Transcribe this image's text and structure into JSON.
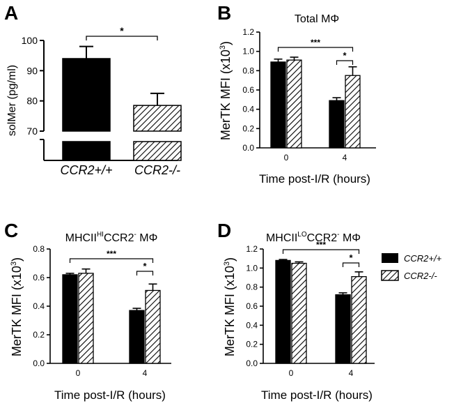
{
  "panels": {
    "A": {
      "letter": "A"
    },
    "B": {
      "letter": "B",
      "title": "Total MΦ"
    },
    "C": {
      "letter": "C",
      "title_main": "MHCII",
      "title_sup": "HI",
      "title_rest": "CCR2",
      "title_sup2": "-",
      "title_end": " MΦ"
    },
    "D": {
      "letter": "D",
      "title_main": "MHCII",
      "title_sup": "LO",
      "title_rest": "CCR2",
      "title_sup2": "-",
      "title_end": " MΦ"
    }
  },
  "legend": {
    "items": [
      "CCR2+/+",
      "CCR2-/-"
    ],
    "colors": [
      "#000000",
      "hatched"
    ]
  },
  "chart_data": [
    {
      "id": "A",
      "type": "bar",
      "ylabel": "solMer (pg/ml)",
      "categories": [
        "CCR2+/+",
        "CCR2-/-"
      ],
      "values": [
        94,
        78.5
      ],
      "errors": [
        4,
        4
      ],
      "ylim": [
        65,
        100
      ],
      "yticks": [
        "70",
        "80",
        "90",
        "100"
      ],
      "axis_break": true,
      "significance": [
        {
          "label": "*",
          "between": [
            "CCR2+/+",
            "CCR2-/-"
          ]
        }
      ]
    },
    {
      "id": "B",
      "type": "bar",
      "title": "Total MΦ",
      "xlabel": "Time post-I/R (hours)",
      "ylabel": "MerTK MFI (x10",
      "ylabel_sup": "3",
      "ylabel_end": ")",
      "categories": [
        "0",
        "4"
      ],
      "series": [
        {
          "name": "CCR2+/+",
          "values": [
            0.89,
            0.49
          ],
          "errors": [
            0.03,
            0.03
          ]
        },
        {
          "name": "CCR2-/-",
          "values": [
            0.91,
            0.75
          ],
          "errors": [
            0.03,
            0.09
          ]
        }
      ],
      "ylim": [
        0,
        1.2
      ],
      "yticks": [
        "0.0",
        "0.2",
        "0.4",
        "0.6",
        "0.8",
        "1.0",
        "1.2"
      ],
      "significance": [
        {
          "label": "***"
        },
        {
          "label": "*"
        }
      ]
    },
    {
      "id": "C",
      "type": "bar",
      "xlabel": "Time post-I/R (hours)",
      "ylabel": "MerTK MFI (x10",
      "ylabel_sup": "3",
      "ylabel_end": ")",
      "categories": [
        "0",
        "4"
      ],
      "series": [
        {
          "name": "CCR2+/+",
          "values": [
            0.62,
            0.37
          ],
          "errors": [
            0.01,
            0.015
          ]
        },
        {
          "name": "CCR2-/-",
          "values": [
            0.63,
            0.51
          ],
          "errors": [
            0.03,
            0.045
          ]
        }
      ],
      "ylim": [
        0,
        0.8
      ],
      "yticks": [
        "0.0",
        "0.2",
        "0.4",
        "0.6",
        "0.8"
      ],
      "significance": [
        {
          "label": "***"
        },
        {
          "label": "*"
        }
      ]
    },
    {
      "id": "D",
      "type": "bar",
      "xlabel": "Time post-I/R (hours)",
      "ylabel": "MerTK MFI (x10",
      "ylabel_sup": "3",
      "ylabel_end": ")",
      "categories": [
        "0",
        "4"
      ],
      "series": [
        {
          "name": "CCR2+/+",
          "values": [
            1.08,
            0.72
          ],
          "errors": [
            0.01,
            0.02
          ]
        },
        {
          "name": "CCR2-/-",
          "values": [
            1.05,
            0.91
          ],
          "errors": [
            0.015,
            0.05
          ]
        }
      ],
      "ylim": [
        0,
        1.2
      ],
      "yticks": [
        "0.0",
        "0.2",
        "0.4",
        "0.6",
        "0.8",
        "1.0",
        "1.2"
      ],
      "significance": [
        {
          "label": "***"
        },
        {
          "label": "*"
        }
      ]
    }
  ]
}
